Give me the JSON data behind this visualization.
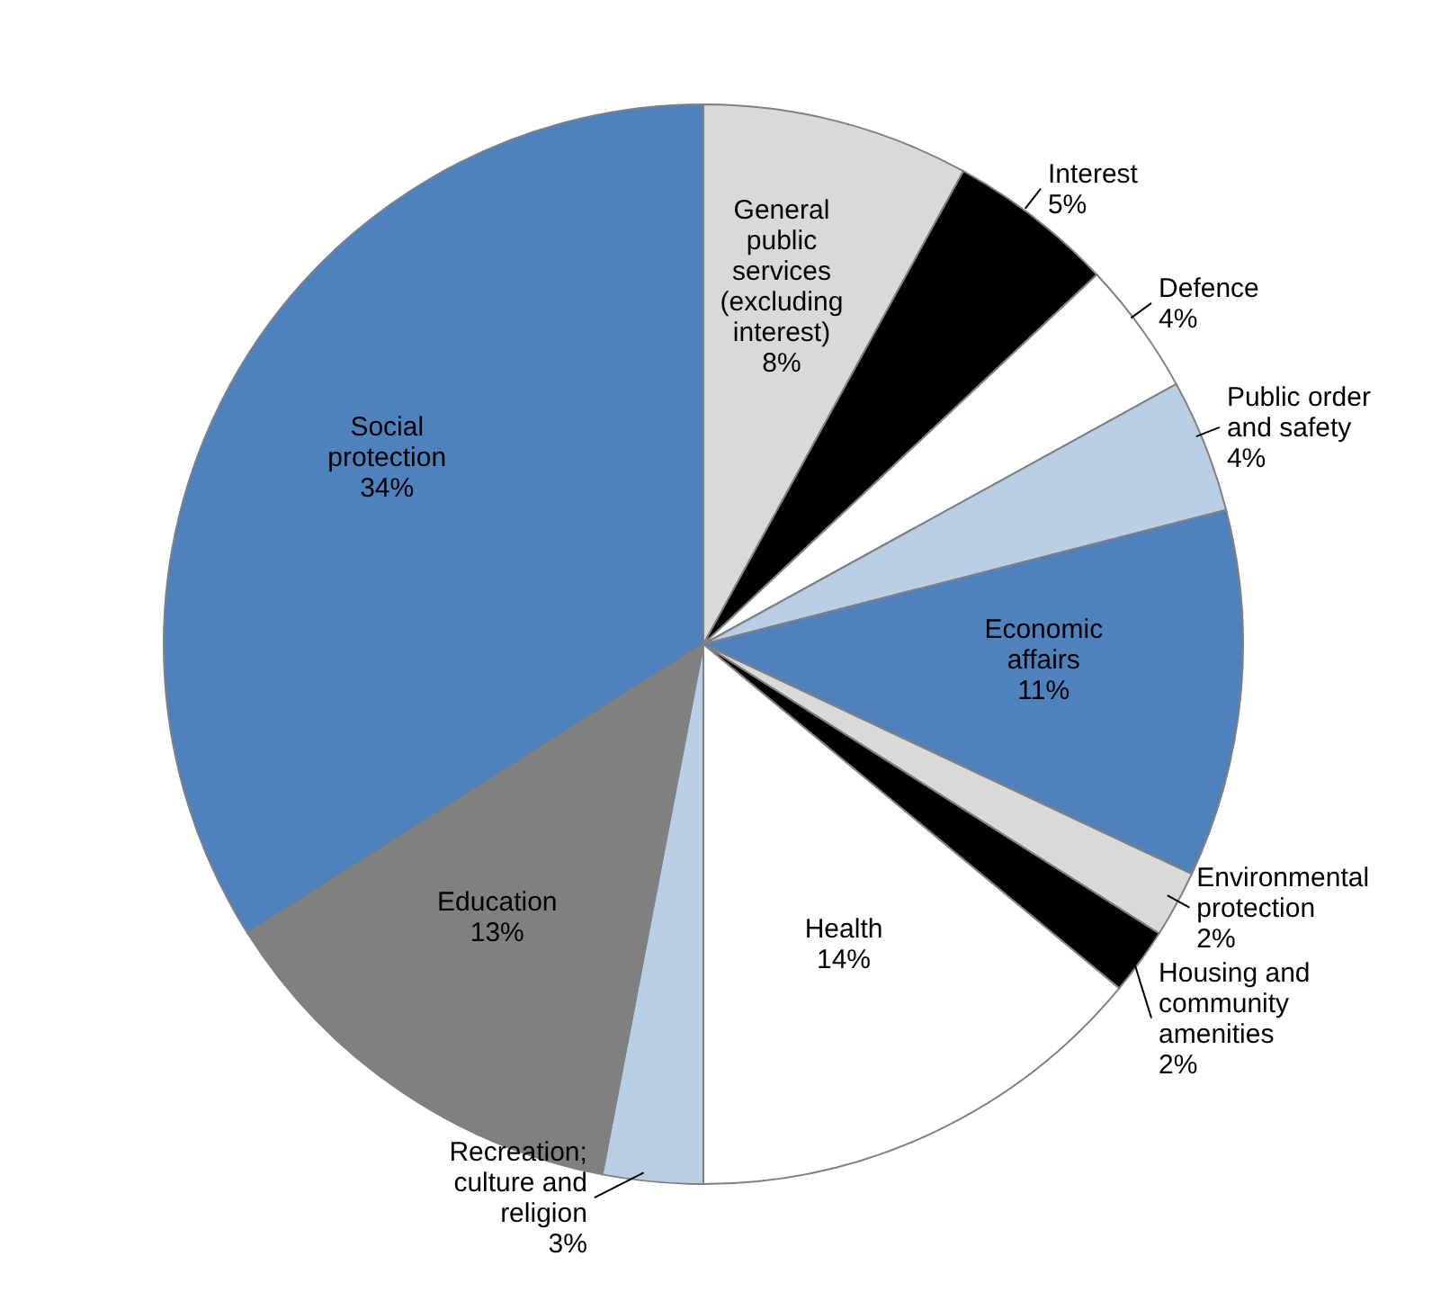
{
  "chart_data": {
    "type": "pie",
    "categories": [
      "General public services (excluding interest)",
      "Interest",
      "Defence",
      "Public order and safety",
      "Economic affairs",
      "Environmental protection",
      "Housing and community amenities",
      "Health",
      "Recreation; culture and religion",
      "Education",
      "Social protection"
    ],
    "values": [
      8,
      5,
      4,
      4,
      11,
      2,
      2,
      14,
      3,
      13,
      34
    ],
    "value_labels": [
      "8%",
      "5%",
      "4%",
      "4%",
      "11%",
      "2%",
      "2%",
      "14%",
      "3%",
      "13%",
      "34%"
    ],
    "colors": [
      "#d9d9d9",
      "#000000",
      "#ffffff",
      "#b9cde5",
      "#4f81bd",
      "#d9d9d9",
      "#000000",
      "#ffffff",
      "#b9cde5",
      "#808080",
      "#4f81bd"
    ]
  }
}
